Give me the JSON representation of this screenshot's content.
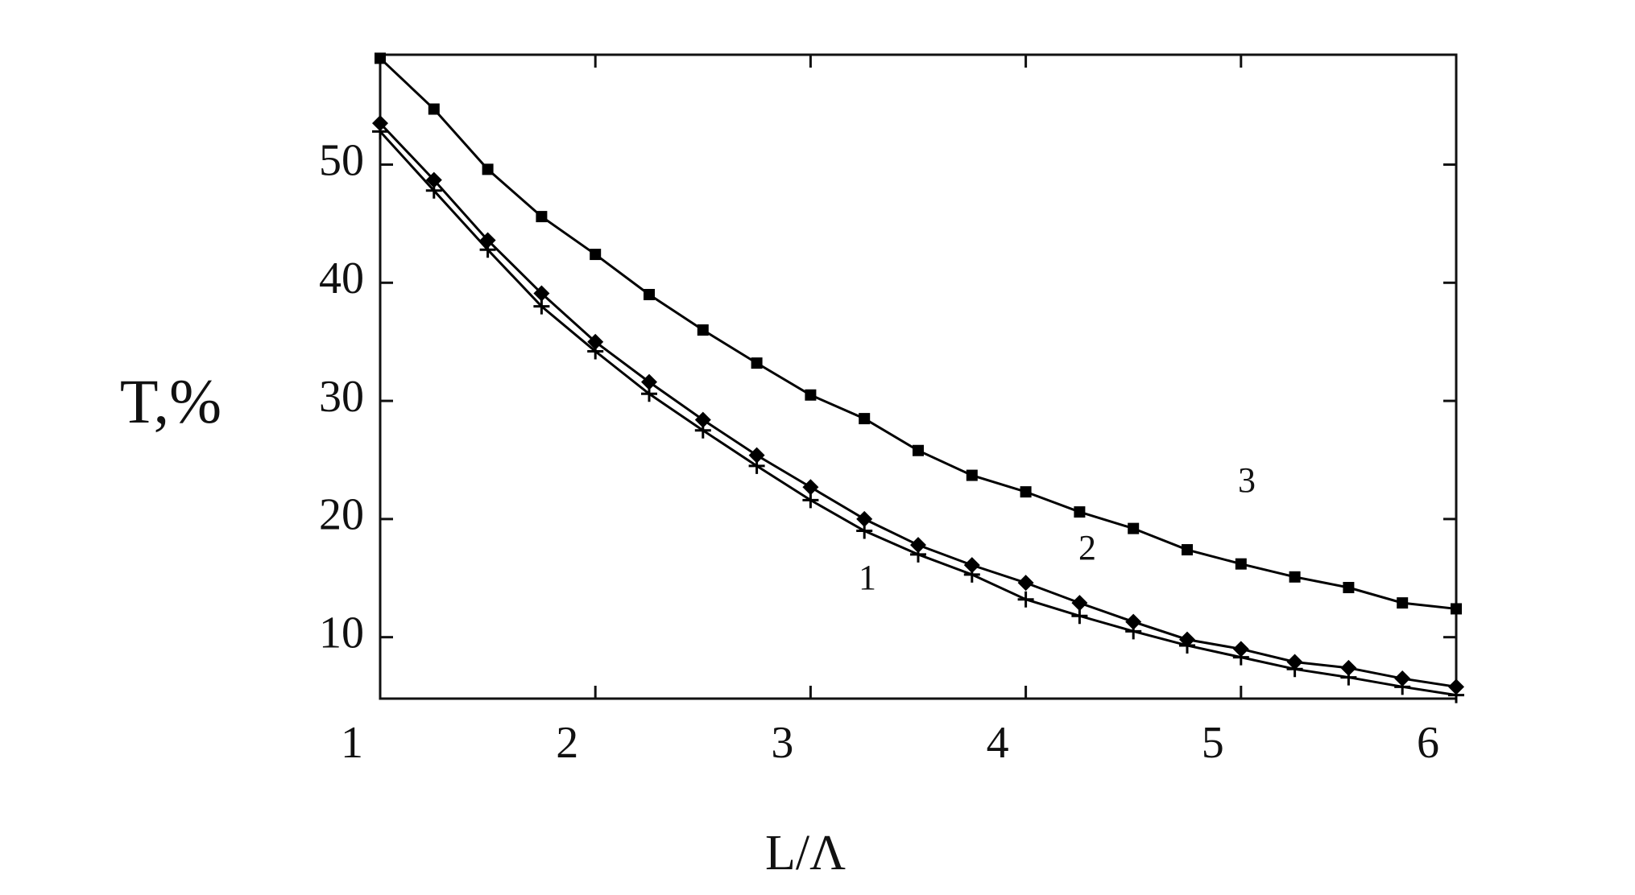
{
  "chart_data": {
    "type": "line",
    "xlabel": "L/Λ",
    "ylabel": "T,%",
    "x": [
      1,
      1.25,
      1.5,
      1.75,
      2,
      2.25,
      2.5,
      2.75,
      3,
      3.25,
      3.5,
      3.75,
      4,
      4.25,
      4.5,
      4.75,
      5,
      5.25,
      5.5,
      5.75,
      6
    ],
    "series": [
      {
        "name": "1",
        "color": "#000000",
        "marker": "plus",
        "values": [
          52.8,
          47.8,
          42.8,
          38.0,
          34.2,
          30.6,
          27.5,
          24.5,
          21.6,
          19.0,
          17.0,
          15.3,
          13.2,
          11.8,
          10.5,
          9.3,
          8.3,
          7.3,
          6.6,
          5.8,
          5.1
        ]
      },
      {
        "name": "2",
        "color": "#000000",
        "marker": "diamond",
        "values": [
          53.5,
          48.7,
          43.6,
          39.1,
          35.0,
          31.6,
          28.4,
          25.4,
          22.7,
          20.0,
          17.8,
          16.1,
          14.6,
          12.9,
          11.3,
          9.8,
          9.0,
          7.9,
          7.4,
          6.5,
          5.8
        ]
      },
      {
        "name": "3",
        "color": "#000000",
        "marker": "square",
        "values": [
          59.0,
          54.7,
          49.6,
          45.6,
          42.4,
          39.0,
          36.0,
          33.2,
          30.5,
          28.5,
          25.8,
          23.7,
          22.3,
          20.6,
          19.2,
          17.4,
          16.2,
          15.1,
          14.2,
          12.9,
          12.4
        ]
      }
    ],
    "xlim": [
      1,
      6
    ],
    "xticks": [
      1,
      2,
      3,
      4,
      5,
      6
    ],
    "ylim": [
      4.8,
      59.3
    ],
    "yticks": [
      10,
      20,
      30,
      40,
      50
    ],
    "grid": false
  }
}
